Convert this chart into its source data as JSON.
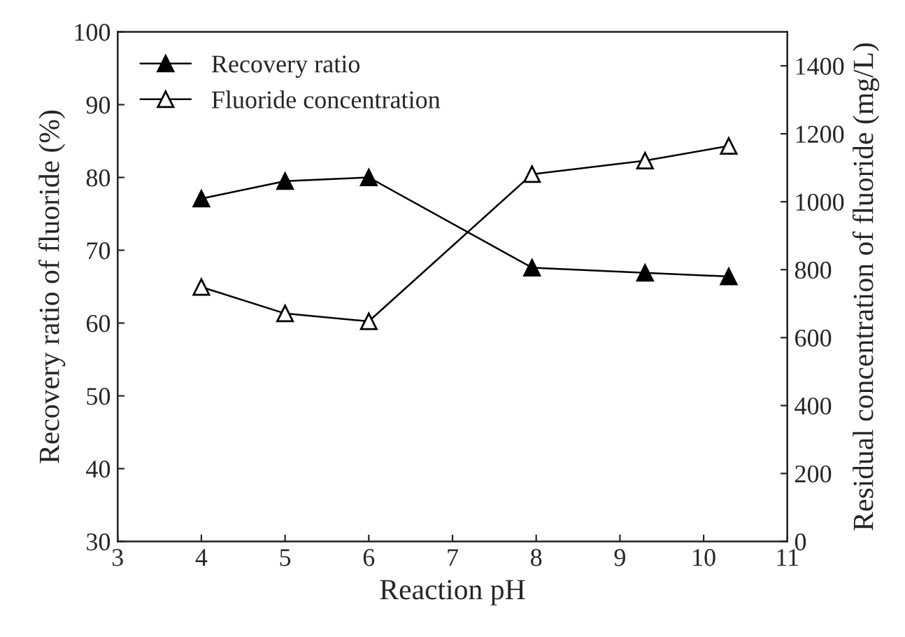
{
  "chart_data": {
    "type": "line",
    "xlabel": "Reaction pH",
    "ylabel": "Recovery ratio of fluoride (%)",
    "y2label": "Residual concentration of fluoride (mg/L)",
    "xlim": [
      3,
      11
    ],
    "xticks": [
      3,
      4,
      5,
      6,
      7,
      8,
      9,
      10,
      11
    ],
    "ylim": [
      30,
      100
    ],
    "yticks": [
      30,
      40,
      50,
      60,
      70,
      80,
      90,
      100
    ],
    "y2lim": [
      0,
      1500
    ],
    "y2ticks": [
      0,
      200,
      400,
      600,
      800,
      1000,
      1200,
      1400
    ],
    "x": [
      4,
      5,
      6,
      7.95,
      9.3,
      10.3
    ],
    "legend": "top left",
    "marker": "triangle",
    "grid": false,
    "series": [
      {
        "name": "Recovery ratio",
        "color": "#000000",
        "values": [
          77.1,
          79.5,
          80.0,
          67.6,
          66.9,
          66.4
        ]
      },
      {
        "name": "Fluoride concentration",
        "color": "#ffffff",
        "axis": "y2",
        "values": [
          749,
          671,
          648,
          1081,
          1121,
          1164
        ]
      }
    ]
  }
}
